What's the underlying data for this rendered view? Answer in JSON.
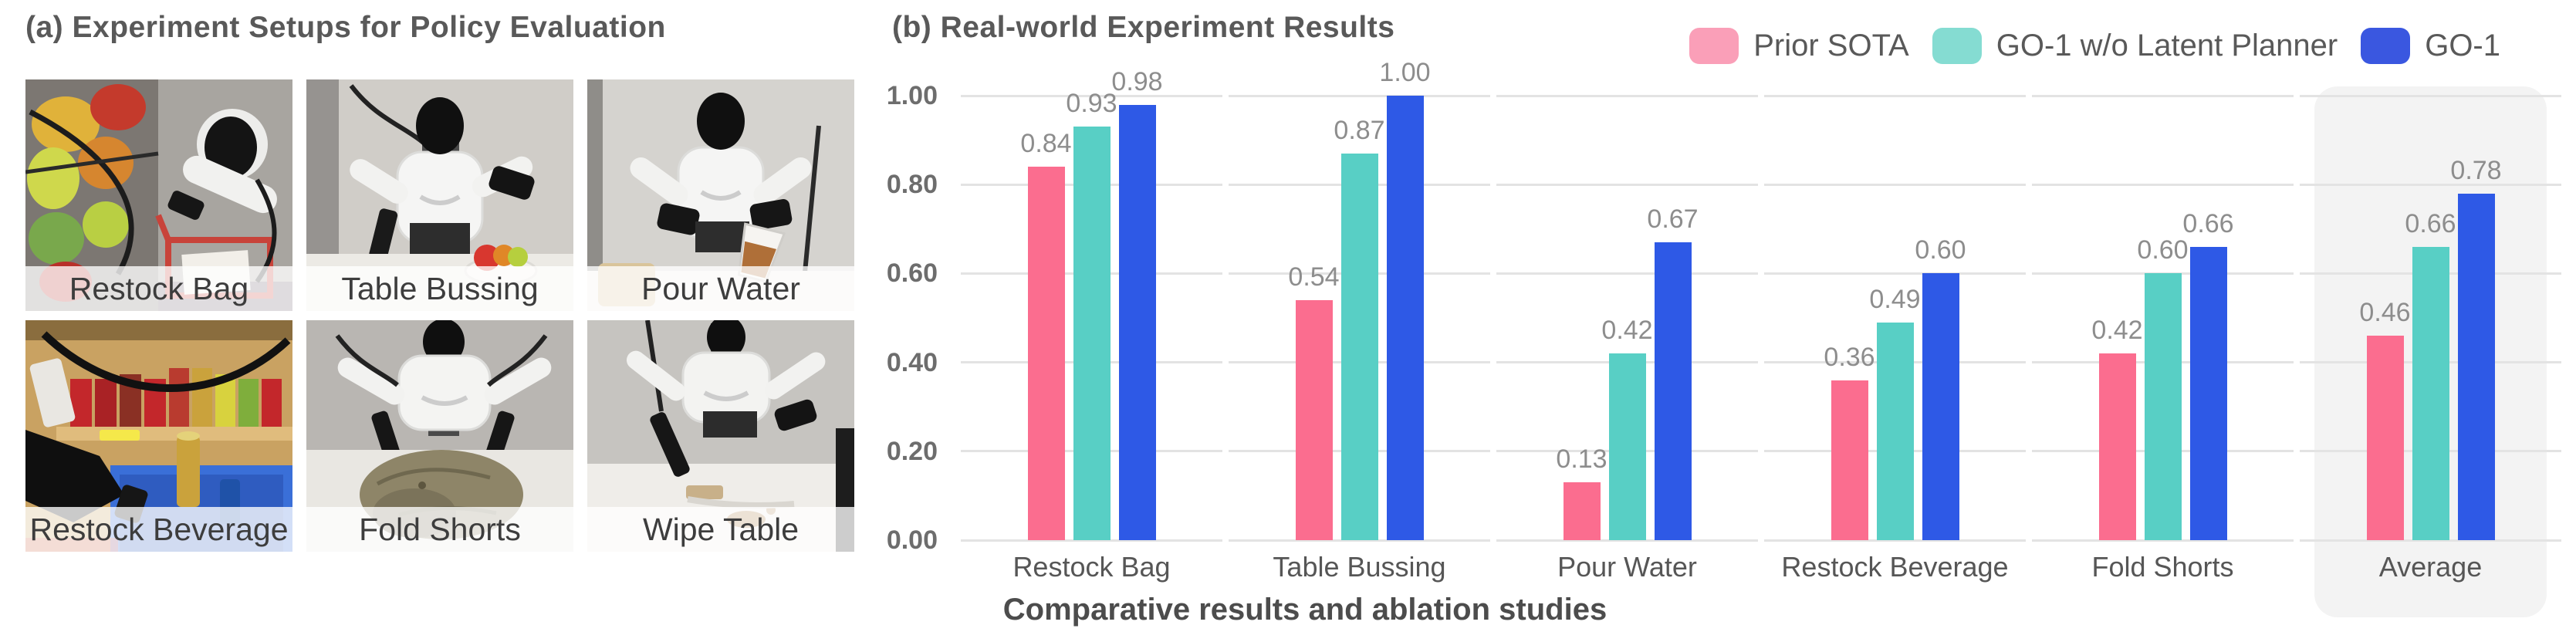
{
  "panel_a": {
    "title": "(a) Experiment Setups for Policy Evaluation",
    "photo_labels": [
      "Restock Bag",
      "Table Bussing",
      "Pour Water",
      "Restock Beverage",
      "Fold Shorts",
      "Wipe Table"
    ]
  },
  "panel_b": {
    "title": "(b) Real-world Experiment Results",
    "caption": "Comparative results and ablation studies",
    "legend": [
      {
        "label": "Prior SOTA",
        "swatch_color": "#FA9FB8"
      },
      {
        "label": "GO-1 w/o Latent Planner",
        "swatch_color": "#85DCD2"
      },
      {
        "label": "GO-1",
        "swatch_color": "#3A57E0"
      }
    ]
  },
  "chart_data": {
    "type": "bar",
    "title": "(b) Real-world Experiment Results",
    "categories": [
      "Restock Bag",
      "Table Bussing",
      "Pour Water",
      "Restock Beverage",
      "Fold Shorts",
      "Average"
    ],
    "series": [
      {
        "name": "Prior SOTA",
        "color": "#FB6D8F",
        "values": [
          0.84,
          0.54,
          0.13,
          0.36,
          0.42,
          0.46
        ]
      },
      {
        "name": "GO-1 w/o Latent Planner",
        "color": "#58CFC5",
        "values": [
          0.93,
          0.87,
          0.42,
          0.49,
          0.6,
          0.66
        ]
      },
      {
        "name": "GO-1",
        "color": "#2E59E6",
        "values": [
          0.98,
          1.0,
          0.67,
          0.6,
          0.66,
          0.78
        ]
      }
    ],
    "value_labels": [
      [
        "0.84",
        "0.93",
        "0.98"
      ],
      [
        "0.54",
        "0.87",
        "1.00"
      ],
      [
        "0.13",
        "0.42",
        "0.67"
      ],
      [
        "0.36",
        "0.49",
        "0.60"
      ],
      [
        "0.42",
        "0.60",
        "0.66"
      ],
      [
        "0.46",
        "0.66",
        "0.78"
      ]
    ],
    "ylim": [
      0,
      1
    ],
    "yticks": [
      "0.00",
      "0.20",
      "0.40",
      "0.60",
      "0.80",
      "1.00"
    ],
    "grid": true,
    "legend_position": "top-right",
    "highlighted_category": "Average",
    "caption": "Comparative results and ablation studies",
    "colors": {
      "grid": "#E3E3E3",
      "value_label": "#8D8D8D",
      "tick_label": "#6D6D6D",
      "category_label": "#565656",
      "highlight_bg": "#F3F3F3"
    }
  }
}
